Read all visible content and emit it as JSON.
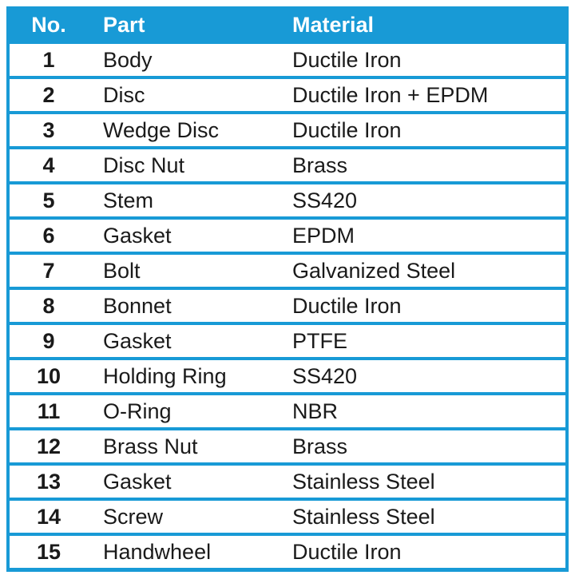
{
  "colors": {
    "accent_blue": "#189AD6",
    "header_text": "#FFFFFF",
    "body_text": "#1A1A1A",
    "row_bg": "#FFFFFF",
    "page_bg": "#FFFFFF"
  },
  "table": {
    "columns": [
      {
        "key": "no",
        "label": "No."
      },
      {
        "key": "part",
        "label": "Part"
      },
      {
        "key": "material",
        "label": "Material"
      }
    ],
    "rows": [
      {
        "no": "1",
        "part": "Body",
        "material": "Ductile Iron"
      },
      {
        "no": "2",
        "part": "Disc",
        "material": "Ductile Iron + EPDM"
      },
      {
        "no": "3",
        "part": "Wedge Disc",
        "material": "Ductile Iron"
      },
      {
        "no": "4",
        "part": "Disc Nut",
        "material": "Brass"
      },
      {
        "no": "5",
        "part": "Stem",
        "material": "SS420"
      },
      {
        "no": "6",
        "part": "Gasket",
        "material": "EPDM"
      },
      {
        "no": "7",
        "part": "Bolt",
        "material": "Galvanized Steel"
      },
      {
        "no": "8",
        "part": "Bonnet",
        "material": "Ductile Iron"
      },
      {
        "no": "9",
        "part": "Gasket",
        "material": "PTFE"
      },
      {
        "no": "10",
        "part": "Holding Ring",
        "material": "SS420"
      },
      {
        "no": "11",
        "part": "O-Ring",
        "material": "NBR"
      },
      {
        "no": "12",
        "part": "Brass Nut",
        "material": "Brass"
      },
      {
        "no": "13",
        "part": "Gasket",
        "material": "Stainless Steel"
      },
      {
        "no": "14",
        "part": "Screw",
        "material": "Stainless Steel"
      },
      {
        "no": "15",
        "part": "Handwheel",
        "material": "Ductile Iron"
      }
    ]
  }
}
